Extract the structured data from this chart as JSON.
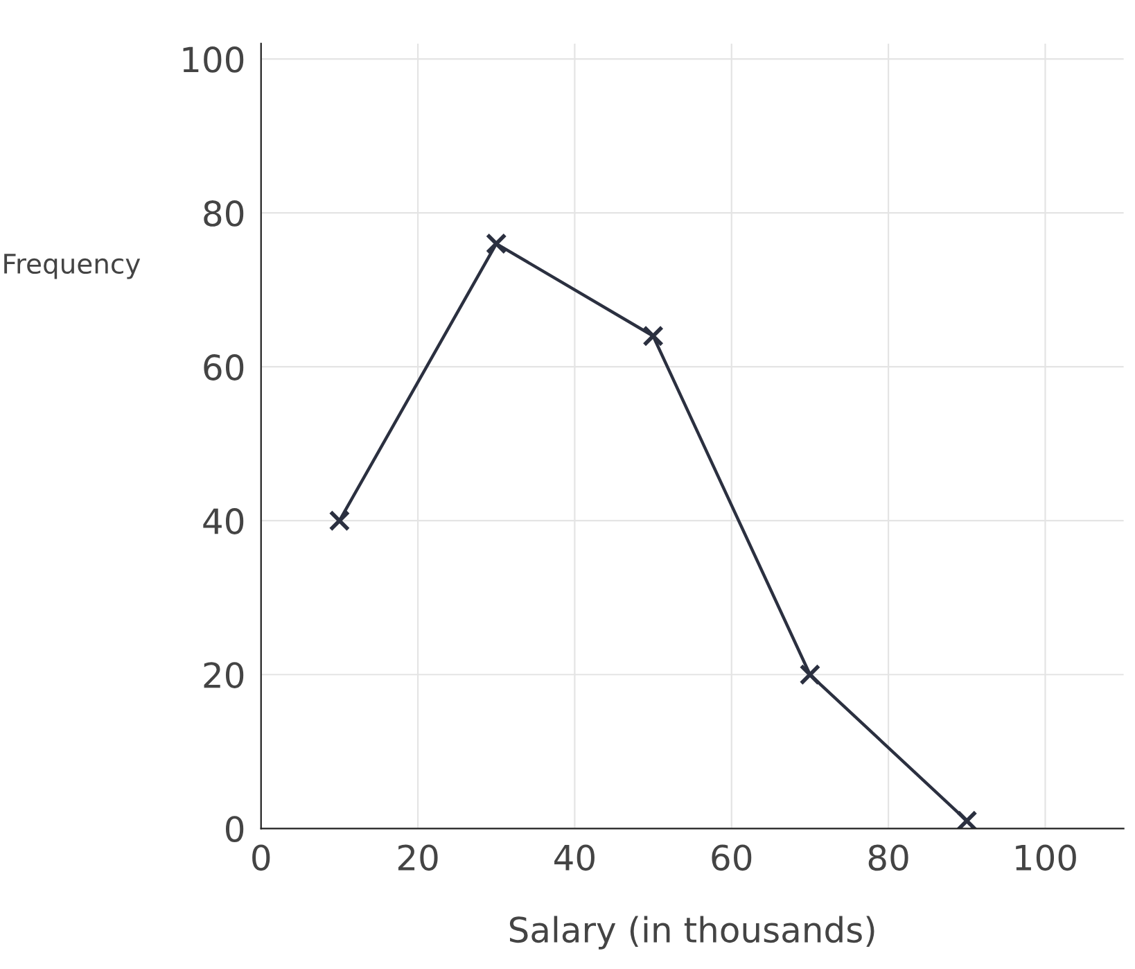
{
  "chart_data": {
    "type": "line",
    "xlabel": "Salary (in thousands)",
    "ylabel": "Frequency",
    "x": [
      10,
      30,
      50,
      70,
      90
    ],
    "series": [
      {
        "color": "#2b3040",
        "values": [
          40,
          76,
          64,
          20,
          1
        ]
      }
    ],
    "xlim": [
      0,
      110
    ],
    "ylim": [
      0,
      102
    ],
    "xticks": [
      0,
      20,
      40,
      60,
      80,
      100
    ],
    "yticks": [
      0,
      20,
      40,
      60,
      80,
      100
    ],
    "grid": true,
    "marker": "cross",
    "line_style": "solid"
  }
}
